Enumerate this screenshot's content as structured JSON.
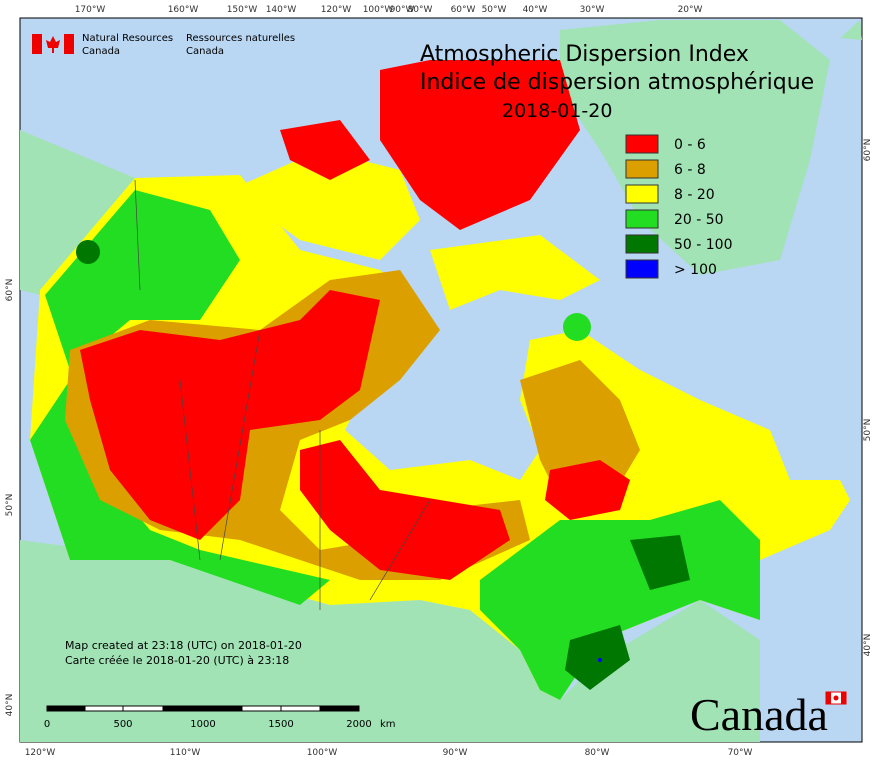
{
  "header": {
    "org_en_1": "Natural Resources",
    "org_en_2": "Canada",
    "org_fr_1": "Ressources naturelles",
    "org_fr_2": "Canada"
  },
  "title": {
    "line1": "Atmospheric Dispersion Index",
    "line2": "Indice de dispersion atmosphérique",
    "date": "2018-01-20"
  },
  "legend": [
    {
      "label": "0 - 6",
      "color": "#ff0000"
    },
    {
      "label": "6 - 8",
      "color": "#dc9f00"
    },
    {
      "label": "8 - 20",
      "color": "#ffff00"
    },
    {
      "label": "20 - 50",
      "color": "#22dd22"
    },
    {
      "label": "50 - 100",
      "color": "#007700"
    },
    {
      "label": "> 100",
      "color": "#0000ff"
    }
  ],
  "footer": {
    "created_en": "Map created at 23:18 (UTC) on 2018-01-20",
    "created_fr": "Carte créée le 2018-01-20 (UTC) à 23:18",
    "wordmark": "Canada"
  },
  "scale_bar": {
    "labels": [
      "0",
      "500",
      "1000",
      "1500",
      "2000"
    ],
    "unit": "km"
  },
  "graticule": {
    "top": [
      "170°W",
      "160°W",
      "150°W",
      "140°W",
      "120°W",
      "100°W",
      "90°W",
      "80°W",
      "60°W",
      "50°W",
      "40°W",
      "30°W",
      "20°W"
    ],
    "bottom": [
      "120°W",
      "110°W",
      "100°W",
      "90°W",
      "80°W",
      "70°W"
    ],
    "left": [
      "60°N",
      "50°N",
      "40°N"
    ],
    "right": [
      "60°N",
      "50°N",
      "40°N"
    ]
  }
}
